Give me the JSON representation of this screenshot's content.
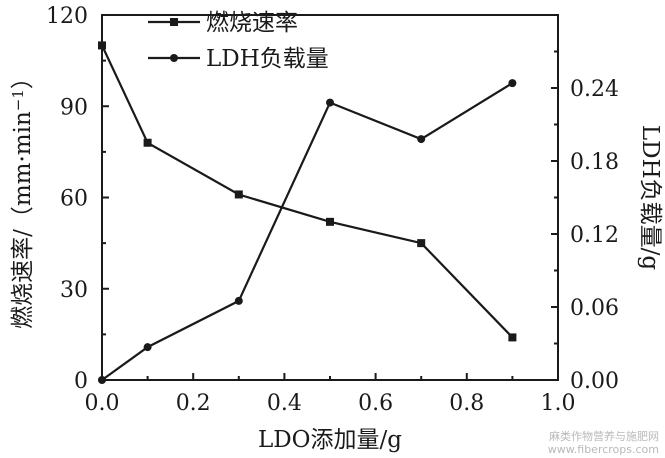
{
  "chart_data": {
    "type": "line",
    "x": [
      0.0,
      0.1,
      0.3,
      0.5,
      0.7,
      0.9
    ],
    "xlabel": "LDO添加量/g",
    "xlim": [
      0.0,
      1.0
    ],
    "xticks": [
      "0.0",
      "0.2",
      "0.4",
      "0.6",
      "0.8",
      "1.0"
    ],
    "ylabel_left": "燃烧速率/（mm·min",
    "ylabel_left_sup": "−1",
    "ylabel_left_close": "）",
    "ylim_left": [
      0,
      120
    ],
    "yticks_left": [
      "0",
      "30",
      "60",
      "90",
      "120"
    ],
    "ylabel_right": "LDH负载量/g",
    "ylim_right": [
      0,
      0.3
    ],
    "yticks_right": [
      "0.00",
      "0.06",
      "0.12",
      "0.18",
      "0.24"
    ],
    "legend_position": "top-left",
    "grid": false,
    "series": [
      {
        "name": "燃烧速率",
        "axis": "left",
        "marker": "square",
        "values": [
          110,
          78,
          61,
          52,
          45,
          14
        ]
      },
      {
        "name": "LDH负载量",
        "axis": "right",
        "marker": "circle",
        "values": [
          0.0,
          0.027,
          0.065,
          0.228,
          0.198,
          0.244
        ]
      }
    ]
  },
  "watermark": {
    "line1": "麻类作物营养与施肥网",
    "line2": "www.fibercrops.com"
  }
}
